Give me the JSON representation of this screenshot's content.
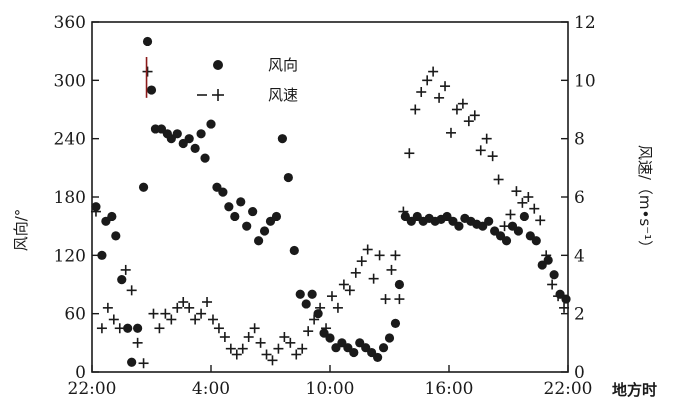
{
  "chart_data": {
    "type": "scatter",
    "x_unit_label": "地方时",
    "x_ticks": [
      {
        "hour": 0,
        "label": "22:00"
      },
      {
        "hour": 6,
        "label": "4:00"
      },
      {
        "hour": 12,
        "label": "10:00"
      },
      {
        "hour": 18,
        "label": "16:00"
      },
      {
        "hour": 24,
        "label": "22:00"
      }
    ],
    "xlim": [
      0,
      24
    ],
    "y_left": {
      "label": "风向/°",
      "lim": [
        0,
        360
      ],
      "ticks": [
        "0",
        "60",
        "120",
        "180",
        "240",
        "300",
        "360"
      ]
    },
    "y_right": {
      "label": "风速/（m•s⁻¹）",
      "lim": [
        0,
        12
      ],
      "ticks": [
        "0",
        "2",
        "4",
        "6",
        "8",
        "10",
        "12"
      ]
    },
    "legend": [
      {
        "name": "风向",
        "marker": "dot"
      },
      {
        "name": "风速",
        "marker": "plus"
      }
    ],
    "legend_position": "top-center",
    "colors": {
      "ink": "#1a1a1a",
      "accent": "#8b1a1a"
    },
    "series": [
      {
        "name": "风向",
        "axis": "left",
        "marker": "dot",
        "points": [
          [
            0.2,
            170
          ],
          [
            0.5,
            120
          ],
          [
            0.7,
            155
          ],
          [
            1.0,
            160
          ],
          [
            1.2,
            140
          ],
          [
            1.5,
            95
          ],
          [
            1.8,
            45
          ],
          [
            2.0,
            10
          ],
          [
            2.3,
            45
          ],
          [
            2.6,
            190
          ],
          [
            2.8,
            340
          ],
          [
            3.0,
            290
          ],
          [
            3.2,
            250
          ],
          [
            3.5,
            250
          ],
          [
            3.8,
            245
          ],
          [
            4.0,
            240
          ],
          [
            4.3,
            245
          ],
          [
            4.6,
            235
          ],
          [
            4.9,
            240
          ],
          [
            5.2,
            230
          ],
          [
            5.5,
            245
          ],
          [
            5.7,
            220
          ],
          [
            6.0,
            255
          ],
          [
            6.3,
            190
          ],
          [
            6.6,
            185
          ],
          [
            6.9,
            170
          ],
          [
            7.2,
            160
          ],
          [
            7.5,
            175
          ],
          [
            7.8,
            150
          ],
          [
            8.1,
            165
          ],
          [
            8.4,
            135
          ],
          [
            8.7,
            145
          ],
          [
            9.0,
            155
          ],
          [
            9.3,
            160
          ],
          [
            9.6,
            240
          ],
          [
            9.9,
            200
          ],
          [
            10.2,
            125
          ],
          [
            10.5,
            80
          ],
          [
            10.8,
            70
          ],
          [
            11.1,
            80
          ],
          [
            11.4,
            60
          ],
          [
            11.7,
            40
          ],
          [
            12.0,
            35
          ],
          [
            12.3,
            25
          ],
          [
            12.6,
            30
          ],
          [
            12.9,
            25
          ],
          [
            13.2,
            20
          ],
          [
            13.5,
            30
          ],
          [
            13.8,
            25
          ],
          [
            14.1,
            20
          ],
          [
            14.4,
            15
          ],
          [
            14.7,
            25
          ],
          [
            15.0,
            35
          ],
          [
            15.3,
            50
          ],
          [
            15.5,
            90
          ],
          [
            15.8,
            160
          ],
          [
            16.1,
            155
          ],
          [
            16.4,
            160
          ],
          [
            16.7,
            155
          ],
          [
            17.0,
            158
          ],
          [
            17.3,
            155
          ],
          [
            17.6,
            157
          ],
          [
            17.9,
            160
          ],
          [
            18.2,
            155
          ],
          [
            18.5,
            150
          ],
          [
            18.8,
            158
          ],
          [
            19.1,
            155
          ],
          [
            19.4,
            152
          ],
          [
            19.7,
            150
          ],
          [
            20.0,
            155
          ],
          [
            20.3,
            145
          ],
          [
            20.6,
            140
          ],
          [
            20.9,
            135
          ],
          [
            21.2,
            150
          ],
          [
            21.5,
            145
          ],
          [
            21.8,
            160
          ],
          [
            22.1,
            140
          ],
          [
            22.4,
            135
          ],
          [
            22.7,
            110
          ],
          [
            23.0,
            115
          ],
          [
            23.3,
            100
          ],
          [
            23.6,
            80
          ],
          [
            23.9,
            75
          ]
        ]
      },
      {
        "name": "风速",
        "axis": "right",
        "marker": "plus",
        "points": [
          [
            0.2,
            5.5
          ],
          [
            0.5,
            1.5
          ],
          [
            0.8,
            2.2
          ],
          [
            1.1,
            1.8
          ],
          [
            1.4,
            1.5
          ],
          [
            1.7,
            3.5
          ],
          [
            2.0,
            2.8
          ],
          [
            2.3,
            1.0
          ],
          [
            2.6,
            0.3
          ],
          [
            2.8,
            10.3
          ],
          [
            3.1,
            2.0
          ],
          [
            3.4,
            1.5
          ],
          [
            3.7,
            2.0
          ],
          [
            4.0,
            1.8
          ],
          [
            4.3,
            2.2
          ],
          [
            4.6,
            2.4
          ],
          [
            4.9,
            2.2
          ],
          [
            5.2,
            1.8
          ],
          [
            5.5,
            2.0
          ],
          [
            5.8,
            2.4
          ],
          [
            6.1,
            1.8
          ],
          [
            6.4,
            1.5
          ],
          [
            6.7,
            1.2
          ],
          [
            7.0,
            0.8
          ],
          [
            7.3,
            0.6
          ],
          [
            7.6,
            0.8
          ],
          [
            7.9,
            1.2
          ],
          [
            8.2,
            1.5
          ],
          [
            8.5,
            1.0
          ],
          [
            8.8,
            0.6
          ],
          [
            9.1,
            0.4
          ],
          [
            9.4,
            0.8
          ],
          [
            9.7,
            1.2
          ],
          [
            10.0,
            1.0
          ],
          [
            10.3,
            0.6
          ],
          [
            10.6,
            0.8
          ],
          [
            10.9,
            1.4
          ],
          [
            11.2,
            1.8
          ],
          [
            11.5,
            2.2
          ],
          [
            11.8,
            1.5
          ],
          [
            12.1,
            2.6
          ],
          [
            12.4,
            2.2
          ],
          [
            12.7,
            3.0
          ],
          [
            13.0,
            2.8
          ],
          [
            13.3,
            3.4
          ],
          [
            13.6,
            3.8
          ],
          [
            13.9,
            4.2
          ],
          [
            14.2,
            3.2
          ],
          [
            14.5,
            4.0
          ],
          [
            14.8,
            2.5
          ],
          [
            15.1,
            3.5
          ],
          [
            15.3,
            4.0
          ],
          [
            15.5,
            2.5
          ],
          [
            15.7,
            5.5
          ],
          [
            16.0,
            7.5
          ],
          [
            16.3,
            9.0
          ],
          [
            16.6,
            9.6
          ],
          [
            16.9,
            10.0
          ],
          [
            17.2,
            10.3
          ],
          [
            17.5,
            9.4
          ],
          [
            17.8,
            9.8
          ],
          [
            18.1,
            8.2
          ],
          [
            18.4,
            9.0
          ],
          [
            18.7,
            9.2
          ],
          [
            19.0,
            8.6
          ],
          [
            19.3,
            8.8
          ],
          [
            19.6,
            7.6
          ],
          [
            19.9,
            8.0
          ],
          [
            20.2,
            7.4
          ],
          [
            20.5,
            6.6
          ],
          [
            20.8,
            5.0
          ],
          [
            21.1,
            5.4
          ],
          [
            21.4,
            6.2
          ],
          [
            21.7,
            5.8
          ],
          [
            22.0,
            6.0
          ],
          [
            22.3,
            5.6
          ],
          [
            22.6,
            5.2
          ],
          [
            22.9,
            4.0
          ],
          [
            23.2,
            3.0
          ],
          [
            23.5,
            2.6
          ],
          [
            23.8,
            2.2
          ]
        ]
      }
    ]
  }
}
